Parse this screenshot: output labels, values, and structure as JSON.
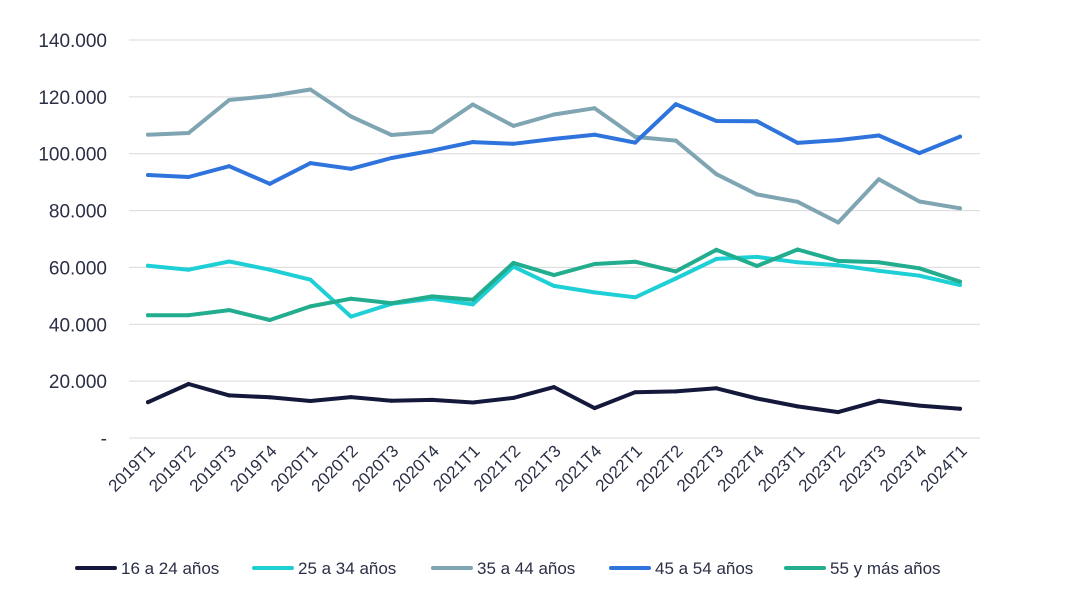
{
  "chart_data": {
    "type": "line",
    "title": "",
    "xlabel": "",
    "ylabel": "",
    "ylim": [
      0,
      140000
    ],
    "grid": true,
    "legend_position": "bottom",
    "y_ticks": [
      {
        "value": 0,
        "label": "-"
      },
      {
        "value": 20000,
        "label": "20.000"
      },
      {
        "value": 40000,
        "label": "40.000"
      },
      {
        "value": 60000,
        "label": "60.000"
      },
      {
        "value": 80000,
        "label": "80.000"
      },
      {
        "value": 100000,
        "label": "100.000"
      },
      {
        "value": 120000,
        "label": "120.000"
      },
      {
        "value": 140000,
        "label": "140.000"
      }
    ],
    "categories": [
      "2019T1",
      "2019T2",
      "2019T3",
      "2019T4",
      "2020T1",
      "2020T2",
      "2020T3",
      "2020T4",
      "2021T1",
      "2021T2",
      "2021T3",
      "2021T4",
      "2022T1",
      "2022T2",
      "2022T3",
      "2022T4",
      "2023T1",
      "2023T2",
      "2023T3",
      "2023T4",
      "2024T1"
    ],
    "series": [
      {
        "name": "16 a 24 años",
        "color": "#14183a",
        "values": [
          12600,
          19000,
          15000,
          14300,
          13000,
          14400,
          13100,
          13400,
          12500,
          14100,
          17900,
          10500,
          16100,
          16400,
          17500,
          13900,
          11100,
          9100,
          13100,
          11400,
          10300
        ]
      },
      {
        "name": "25 a 34 años",
        "color": "#1ecfd6",
        "values": [
          60600,
          59200,
          62100,
          59200,
          55700,
          42700,
          47200,
          49000,
          47000,
          60300,
          53500,
          51200,
          49500,
          56100,
          63000,
          63700,
          61800,
          60800,
          58800,
          57100,
          53800
        ]
      },
      {
        "name": "35 a 44 años",
        "color": "#7fa5b3",
        "values": [
          106700,
          107300,
          118900,
          120300,
          122600,
          113100,
          106600,
          107700,
          117300,
          109800,
          113800,
          116000,
          105900,
          104600,
          92800,
          85700,
          83100,
          75800,
          91000,
          83200,
          80800
        ]
      },
      {
        "name": "45 a 54 años",
        "color": "#2f74dc",
        "values": [
          92500,
          91800,
          95600,
          89400,
          96700,
          94700,
          98500,
          101100,
          104100,
          103500,
          105200,
          106700,
          103900,
          117400,
          111500,
          111400,
          103800,
          104800,
          106400,
          100200,
          106000
        ]
      },
      {
        "name": "55 y más años",
        "color": "#21ad8e",
        "values": [
          43200,
          43200,
          45000,
          41500,
          46300,
          49000,
          47400,
          49800,
          48600,
          61600,
          57300,
          61200,
          62000,
          58600,
          66200,
          60500,
          66300,
          62300,
          61800,
          59700,
          55000
        ]
      }
    ]
  }
}
